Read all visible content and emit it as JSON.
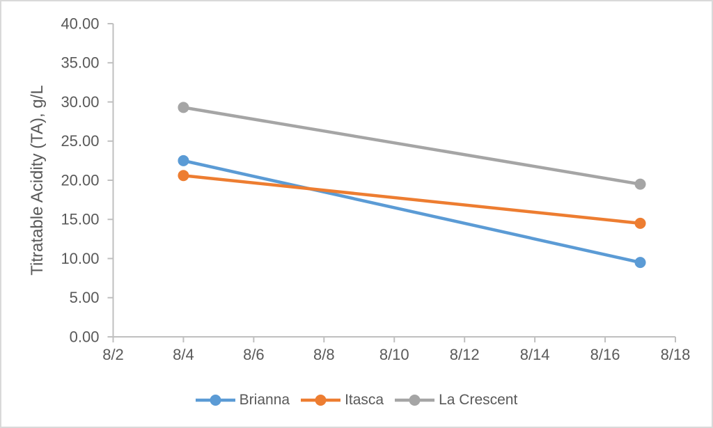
{
  "style": {
    "background": "#FFFFFF",
    "border_color": "#D9D9D9",
    "axis_color": "#BFBFBF",
    "text_color": "#595959"
  },
  "chart_data": {
    "type": "line",
    "title": "",
    "xlabel": "",
    "ylabel": "Titratable Acidity (TA), g/L",
    "x_axis": {
      "tick_labels": [
        "8/2",
        "8/4",
        "8/6",
        "8/8",
        "8/10",
        "8/12",
        "8/14",
        "8/16",
        "8/18"
      ],
      "tick_values": [
        2,
        4,
        6,
        8,
        10,
        12,
        14,
        16,
        18
      ],
      "range": [
        2,
        18
      ]
    },
    "y_axis": {
      "tick_labels": [
        "0.00",
        "5.00",
        "10.00",
        "15.00",
        "20.00",
        "25.00",
        "30.00",
        "35.00",
        "40.00"
      ],
      "tick_values": [
        0,
        5,
        10,
        15,
        20,
        25,
        30,
        35,
        40
      ],
      "range": [
        0,
        40
      ]
    },
    "grid": false,
    "legend": {
      "position": "bottom",
      "entries": [
        "Brianna",
        "Itasca",
        "La Crescent"
      ]
    },
    "series": [
      {
        "name": "Brianna",
        "color": "#5B9BD5",
        "x_days": [
          4,
          17
        ],
        "x_dates": [
          "8/4",
          "8/17"
        ],
        "values": [
          22.5,
          9.5
        ]
      },
      {
        "name": "Itasca",
        "color": "#ED7D31",
        "x_days": [
          4,
          17
        ],
        "x_dates": [
          "8/4",
          "8/17"
        ],
        "values": [
          20.6,
          14.5
        ]
      },
      {
        "name": "La Crescent",
        "color": "#A5A5A5",
        "x_days": [
          4,
          17
        ],
        "x_dates": [
          "8/4",
          "8/17"
        ],
        "values": [
          29.3,
          19.5
        ]
      }
    ]
  }
}
